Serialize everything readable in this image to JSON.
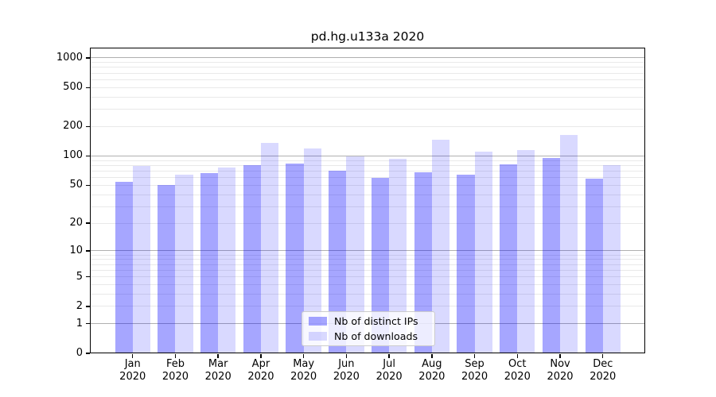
{
  "chart_data": {
    "type": "bar",
    "title": "pd.hg.u133a 2020",
    "categories": [
      "Jan 2020",
      "Feb 2020",
      "Mar 2020",
      "Apr 2020",
      "May 2020",
      "Jun 2020",
      "Jul 2020",
      "Aug 2020",
      "Sep 2020",
      "Oct 2020",
      "Nov 2020",
      "Dec 2020"
    ],
    "series": [
      {
        "name": "Nb of distinct IPs",
        "color": "rgba(0,0,255,0.35)",
        "values": [
          54,
          50,
          67,
          81,
          83,
          71,
          60,
          68,
          64,
          82,
          96,
          58
        ]
      },
      {
        "name": "Nb of downloads",
        "color": "rgba(0,0,255,0.15)",
        "values": [
          79,
          64,
          76,
          136,
          119,
          99,
          93,
          147,
          110,
          114,
          165,
          81
        ]
      }
    ],
    "xlabel": "",
    "ylabel": "",
    "yscale": "log1p",
    "ylim": [
      0,
      1300
    ],
    "y_tick_values": [
      0,
      1,
      2,
      5,
      10,
      20,
      50,
      100,
      200,
      500,
      1000
    ],
    "y_tick_labels": [
      "0",
      "1",
      "2",
      "5",
      "10",
      "20",
      "50",
      "100",
      "200",
      "500",
      "1000"
    ],
    "grid": "both",
    "major_grid_values": [
      1,
      10,
      100,
      1000
    ],
    "major_grid_color": "#b0b0b0",
    "minor_grid_color": "#e9e9e9",
    "legend_position": "lower center",
    "legend_labels": [
      "Nb of distinct IPs",
      "Nb of downloads"
    ]
  }
}
